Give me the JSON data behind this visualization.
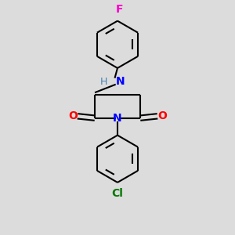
{
  "background_color": "#dcdcdc",
  "bond_color": "#000000",
  "bond_width": 1.5,
  "atom_colors": {
    "N": "#0000ff",
    "O": "#ff0000",
    "F": "#ff00cc",
    "Cl": "#007700",
    "C": "#000000",
    "H": "#4682b4"
  },
  "font_size": 9,
  "fig_size": [
    3.0,
    3.0
  ],
  "dpi": 100,
  "xlim": [
    -1.4,
    1.4
  ],
  "ylim": [
    -2.9,
    2.1
  ]
}
